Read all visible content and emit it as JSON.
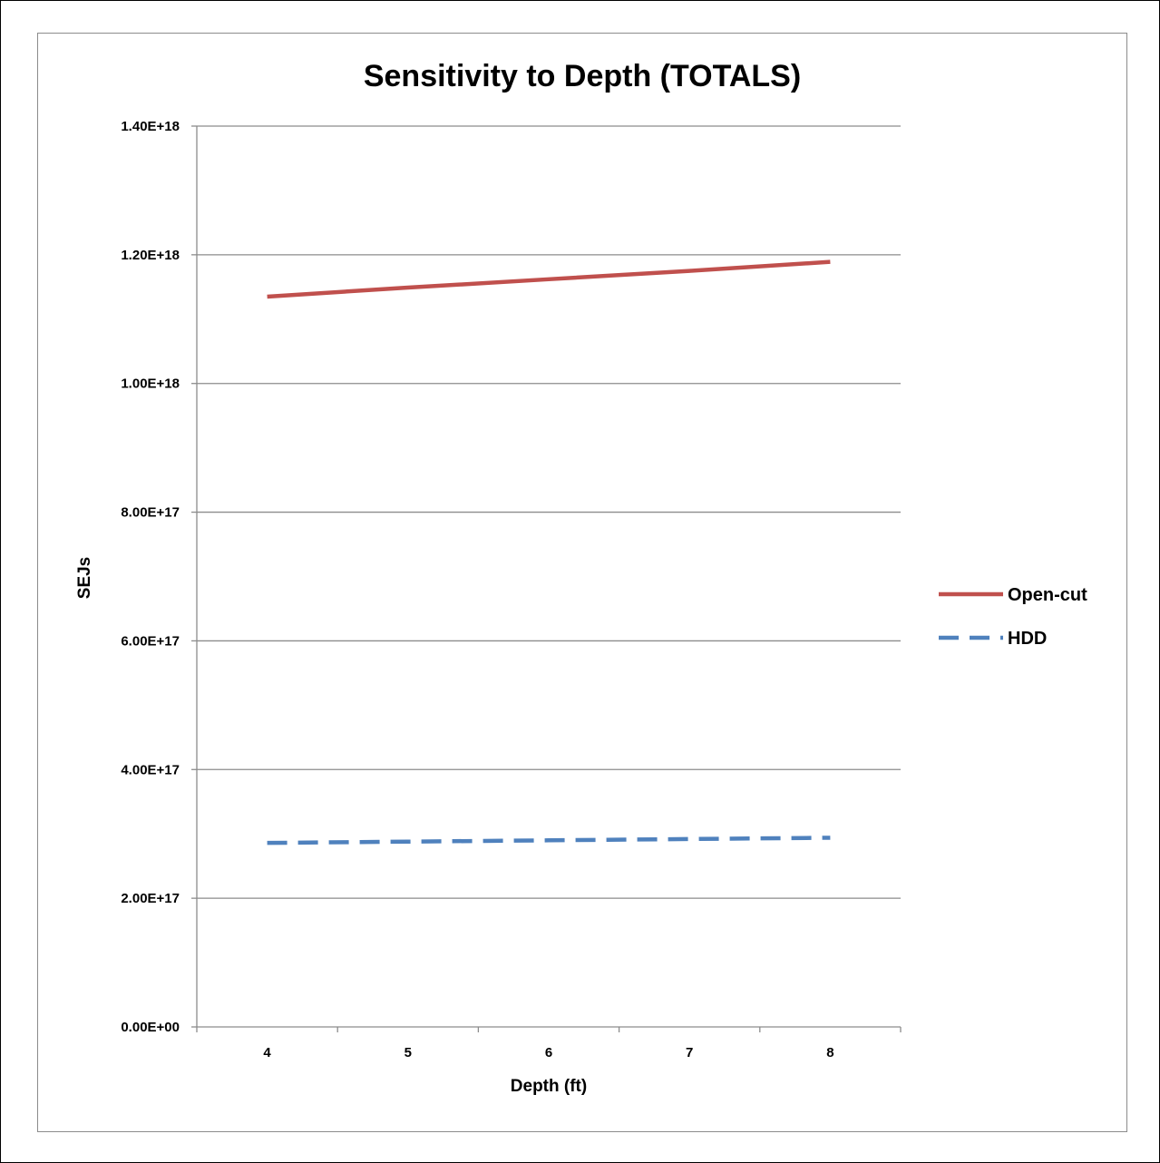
{
  "chart_data": {
    "type": "line",
    "title": "Sensitivity to Depth (TOTALS)",
    "xlabel": "Depth (ft)",
    "ylabel": "SEJs",
    "categories": [
      "4",
      "5",
      "6",
      "7",
      "8"
    ],
    "ylim": [
      0,
      1.4e+18
    ],
    "yticks": [
      0,
      2e+17,
      4e+17,
      6e+17,
      8e+17,
      1e+18,
      1.2e+18,
      1.4e+18
    ],
    "ytick_labels": [
      "0.00E+00",
      "2.00E+17",
      "4.00E+17",
      "6.00E+17",
      "8.00E+17",
      "1.00E+18",
      "1.20E+18",
      "1.40E+18"
    ],
    "grid": true,
    "legend_position": "right",
    "series": [
      {
        "name": "Open-cut",
        "values": [
          1.135e+18,
          1.149e+18,
          1.162e+18,
          1.175e+18,
          1.189e+18
        ],
        "color": "#C0504D",
        "style": "solid"
      },
      {
        "name": "HDD",
        "values": [
          2.86e+17,
          2.88e+17,
          2.9e+17,
          2.92e+17,
          2.94e+17
        ],
        "color": "#4F81BD",
        "style": "dashed"
      }
    ]
  }
}
